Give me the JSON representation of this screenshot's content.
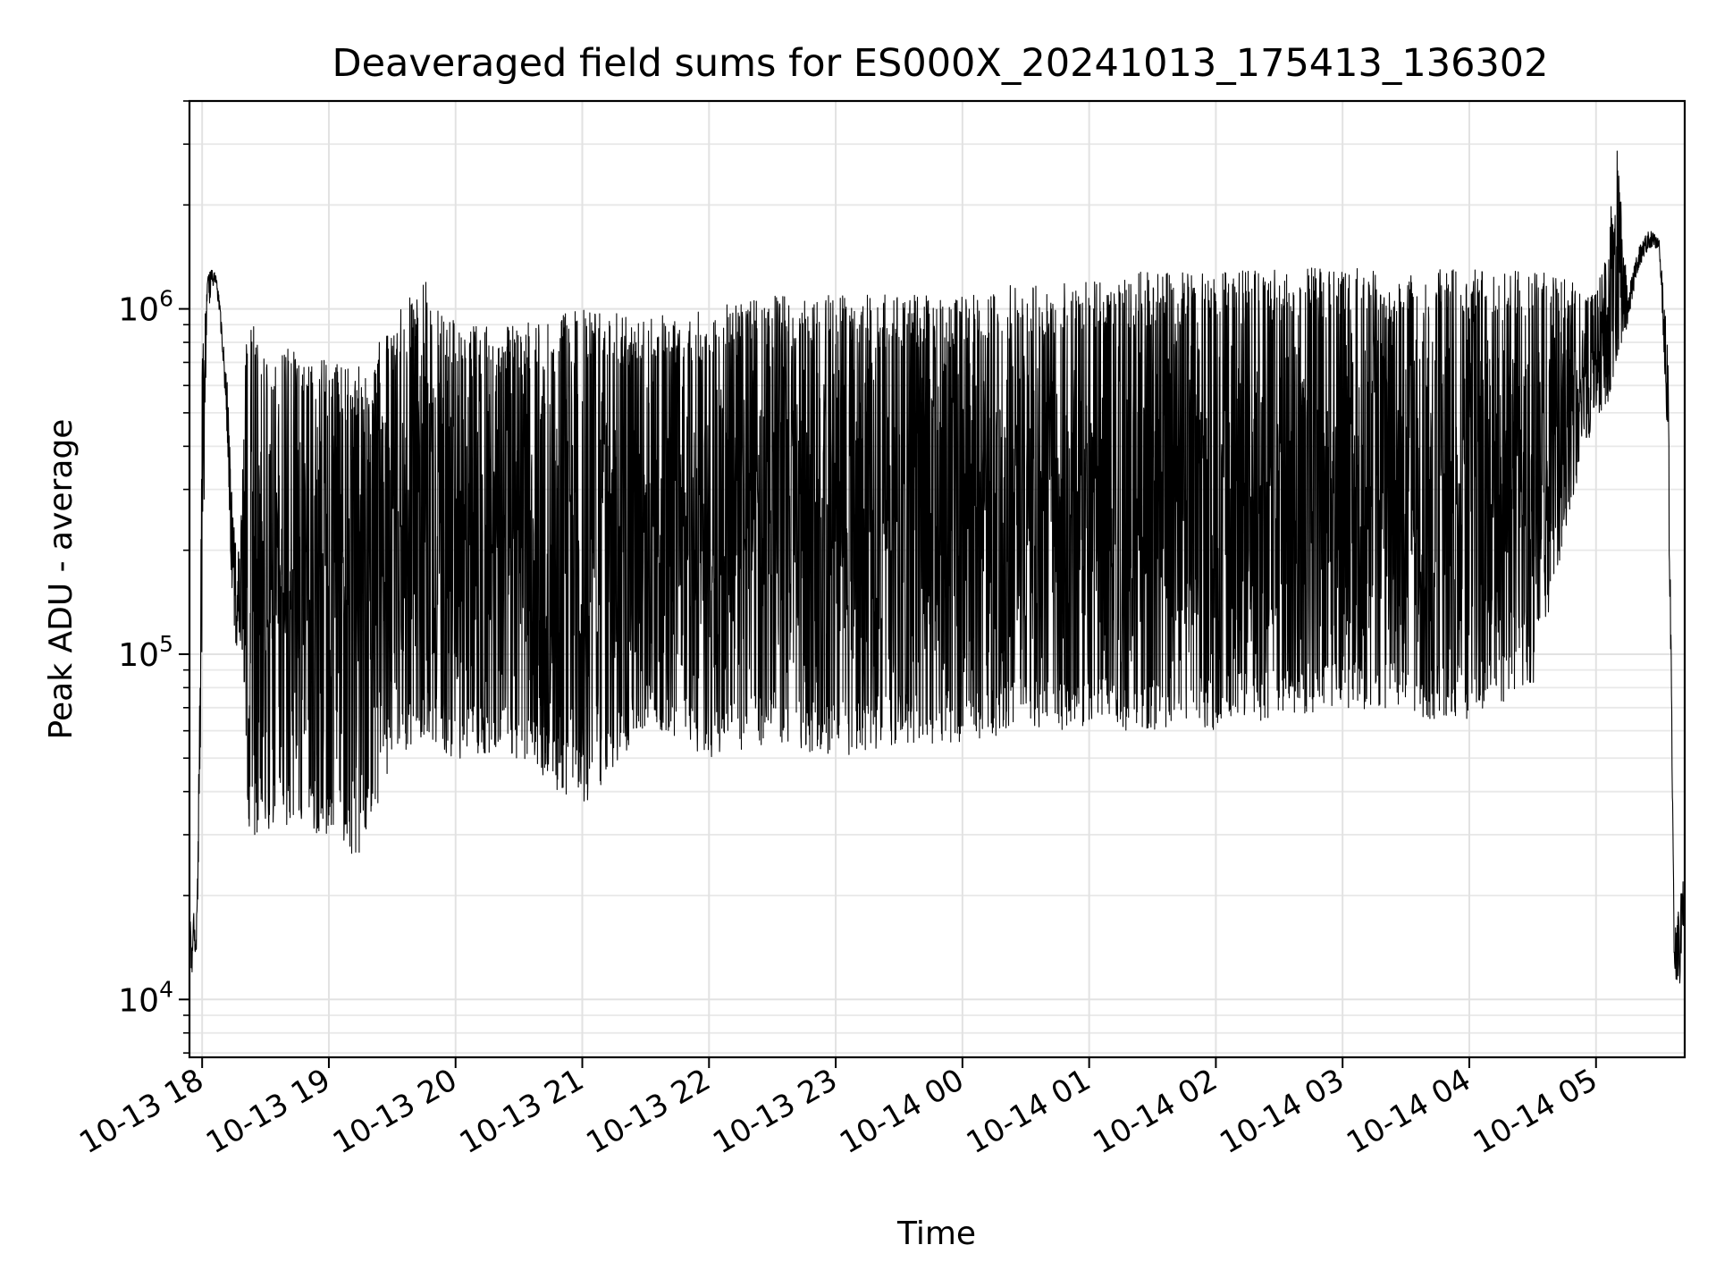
{
  "chart_data": {
    "type": "line",
    "title": "Deaveraged field sums for ES000X_20241013_175413_136302",
    "xlabel": "Time",
    "ylabel": "Peak ADU - average",
    "yscale": "log",
    "grid": true,
    "line_color": "#000000",
    "xlim": [
      "2024-10-13T17:54:00",
      "2024-10-14T05:42:00"
    ],
    "ylim": [
      6800,
      4000000
    ],
    "x_ticks": [
      "2024-10-13T18:00",
      "2024-10-13T19:00",
      "2024-10-13T20:00",
      "2024-10-13T21:00",
      "2024-10-13T22:00",
      "2024-10-13T23:00",
      "2024-10-14T00:00",
      "2024-10-14T01:00",
      "2024-10-14T02:00",
      "2024-10-14T03:00",
      "2024-10-14T04:00",
      "2024-10-14T05:00"
    ],
    "x_tick_labels": [
      "10-13 18",
      "10-13 19",
      "10-13 20",
      "10-13 21",
      "10-13 22",
      "10-13 23",
      "10-14 00",
      "10-14 01",
      "10-14 02",
      "10-14 03",
      "10-14 04",
      "10-14 05"
    ],
    "y_ticks": [
      10000,
      100000,
      1000000
    ],
    "y_tick_labels": [
      {
        "base": "10",
        "exp": "4"
      },
      {
        "base": "10",
        "exp": "5"
      },
      {
        "base": "10",
        "exp": "6"
      }
    ],
    "series": [
      {
        "x": [
          "2024-10-13T17:54:00",
          "2024-10-13T17:55:00",
          "2024-10-13T17:56:00",
          "2024-10-13T17:57:00",
          "2024-10-13T17:58:00",
          "2024-10-13T18:00:00",
          "2024-10-13T18:02:00",
          "2024-10-13T18:04:00",
          "2024-10-13T18:06:00",
          "2024-10-13T18:08:00",
          "2024-10-13T18:10:00",
          "2024-10-13T18:12:00",
          "2024-10-13T18:14:00",
          "2024-10-13T18:16:00",
          "2024-10-13T18:18:00",
          "2024-10-13T18:20:00",
          "2024-10-13T18:22:00",
          "2024-10-13T18:30:00",
          "2024-10-13T18:45:00",
          "2024-10-13T19:00:00",
          "2024-10-13T19:15:00",
          "2024-10-13T19:30:00",
          "2024-10-13T19:45:00",
          "2024-10-13T20:00:00",
          "2024-10-13T20:30:00",
          "2024-10-13T21:00:00",
          "2024-10-13T21:30:00",
          "2024-10-13T22:00:00",
          "2024-10-13T22:30:00",
          "2024-10-13T23:00:00",
          "2024-10-13T23:30:00",
          "2024-10-14T00:00:00",
          "2024-10-14T00:30:00",
          "2024-10-14T01:00:00",
          "2024-10-14T01:30:00",
          "2024-10-14T02:00:00",
          "2024-10-14T02:30:00",
          "2024-10-14T03:00:00",
          "2024-10-14T03:30:00",
          "2024-10-14T04:00:00",
          "2024-10-14T04:30:00",
          "2024-10-14T04:50:00",
          "2024-10-14T05:00:00",
          "2024-10-14T05:05:00",
          "2024-10-14T05:10:00",
          "2024-10-14T05:15:00",
          "2024-10-14T05:20:00",
          "2024-10-14T05:25:00",
          "2024-10-14T05:30:00",
          "2024-10-14T05:34:00",
          "2024-10-14T05:37:00",
          "2024-10-14T05:39:00",
          "2024-10-14T05:41:00"
        ],
        "low": [
          15000,
          11000,
          16000,
          12000,
          20000,
          100000,
          800000,
          1100000,
          1200000,
          1000000,
          700000,
          400000,
          150000,
          100000,
          110000,
          80000,
          30000,
          30000,
          30000,
          30000,
          25000,
          50000,
          55000,
          50000,
          50000,
          35000,
          60000,
          50000,
          55000,
          50000,
          55000,
          55000,
          60000,
          60000,
          60000,
          60000,
          65000,
          70000,
          65000,
          65000,
          80000,
          300000,
          500000,
          500000,
          700000,
          900000,
          1300000,
          1500000,
          1500000,
          400000,
          13000,
          9000,
          16000
        ],
        "high": [
          19000,
          14000,
          18000,
          14000,
          25000,
          700000,
          1200000,
          1300000,
          1300000,
          1100000,
          800000,
          600000,
          300000,
          200000,
          200000,
          600000,
          1100000,
          700000,
          800000,
          700000,
          700000,
          900000,
          1300000,
          900000,
          900000,
          1000000,
          950000,
          1000000,
          1100000,
          1100000,
          1100000,
          1100000,
          1200000,
          1200000,
          1300000,
          1300000,
          1300000,
          1350000,
          1300000,
          1300000,
          1300000,
          1200000,
          1100000,
          1500000,
          3000000,
          1100000,
          1500000,
          1700000,
          1600000,
          800000,
          16000,
          18000,
          22000
        ]
      }
    ]
  }
}
